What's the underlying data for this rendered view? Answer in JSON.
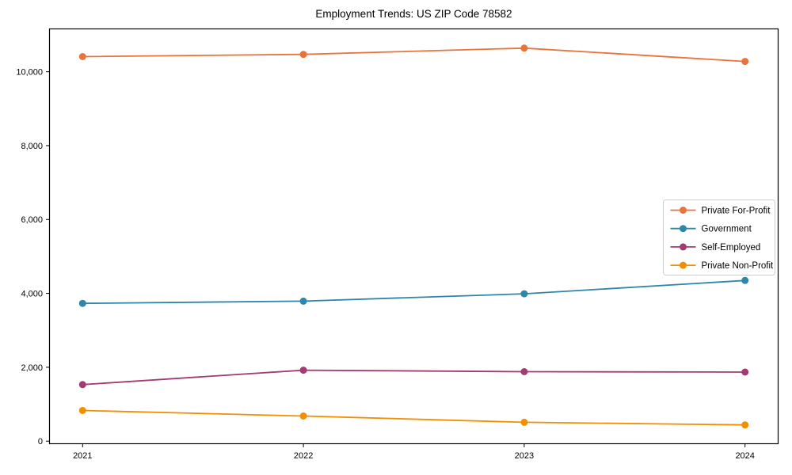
{
  "chart_data": {
    "type": "line",
    "title": "Employment Trends: US ZIP Code 78582",
    "xlabel": "",
    "ylabel": "",
    "x": [
      2021,
      2022,
      2023,
      2024
    ],
    "x_tick_labels": [
      "2021",
      "2022",
      "2023",
      "2024"
    ],
    "y_ticks": [
      0,
      2000,
      4000,
      6000,
      8000,
      10000
    ],
    "y_tick_labels": [
      "0",
      "2,000",
      "4,000",
      "6,000",
      "8,000",
      "10,000"
    ],
    "xlim": [
      2020.85,
      2024.15
    ],
    "ylim": [
      -70,
      11160
    ],
    "grid": false,
    "legend_position": "center-right",
    "background_color": "#ffffff",
    "spine_color": "#000000",
    "legend_border_color": "#cccccc",
    "series": [
      {
        "name": "Private For-Profit",
        "color": "#E8743B",
        "values": [
          10410,
          10470,
          10640,
          10280
        ]
      },
      {
        "name": "Government",
        "color": "#2E86AB",
        "values": [
          3730,
          3790,
          3990,
          4350
        ]
      },
      {
        "name": "Self-Employed",
        "color": "#A23B72",
        "values": [
          1530,
          1920,
          1880,
          1870
        ]
      },
      {
        "name": "Private Non-Profit",
        "color": "#F18F01",
        "values": [
          830,
          680,
          510,
          440
        ]
      }
    ]
  }
}
